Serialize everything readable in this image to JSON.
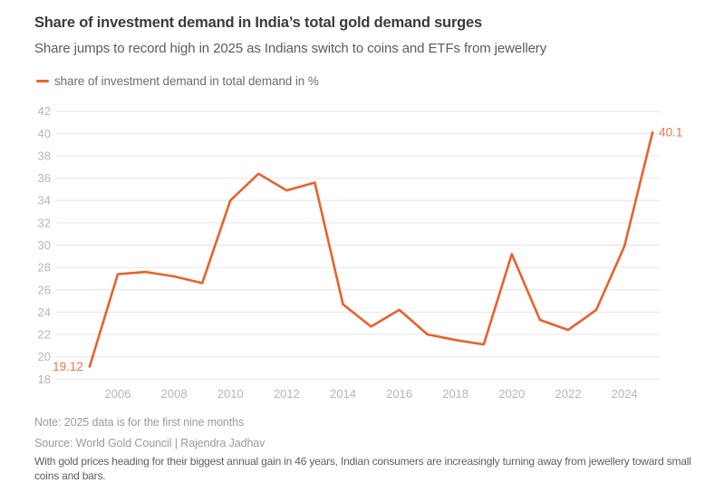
{
  "header": {
    "title": "Share of investment demand in India’s total gold demand surges",
    "subtitle": "Share jumps to record high in 2025 as Indians switch to coins and ETFs from jewellery"
  },
  "legend": {
    "label": "share of investment demand in total demand in %"
  },
  "colors": {
    "line": "#e8622b",
    "value_label": "#ee7449",
    "grid": "#e4e4e4",
    "tick_label": "#b6b6b6"
  },
  "chart_data": {
    "type": "line",
    "title": "Share of investment demand in India’s total gold demand surges",
    "series_name": "share of investment demand in total demand in %",
    "x": [
      2005,
      2006,
      2007,
      2008,
      2009,
      2010,
      2011,
      2012,
      2013,
      2014,
      2015,
      2016,
      2017,
      2018,
      2019,
      2020,
      2021,
      2022,
      2023,
      2024,
      2025
    ],
    "values": [
      19.12,
      27.4,
      27.6,
      27.2,
      26.6,
      34.0,
      36.4,
      34.9,
      35.6,
      24.7,
      22.7,
      24.2,
      22.0,
      21.5,
      21.1,
      29.2,
      23.3,
      22.4,
      24.2,
      29.9,
      40.1
    ],
    "ylim": [
      18,
      42
    ],
    "ytick_step": 2,
    "xticks": [
      2006,
      2008,
      2010,
      2012,
      2014,
      2016,
      2018,
      2020,
      2022,
      2024
    ],
    "grid": true,
    "legend_position": "top-left",
    "first_point_label": "19.12",
    "last_point_label": "40.1",
    "xlabel": "",
    "ylabel": ""
  },
  "footer": {
    "note": "Note: 2025 data is for the first nine months",
    "source": "Source: World Gold Council | Rajendra Jadhav",
    "description": "With gold prices heading for their biggest annual gain in 46 years, Indian consumers are increasingly turning away from jewellery toward small coins and bars."
  }
}
